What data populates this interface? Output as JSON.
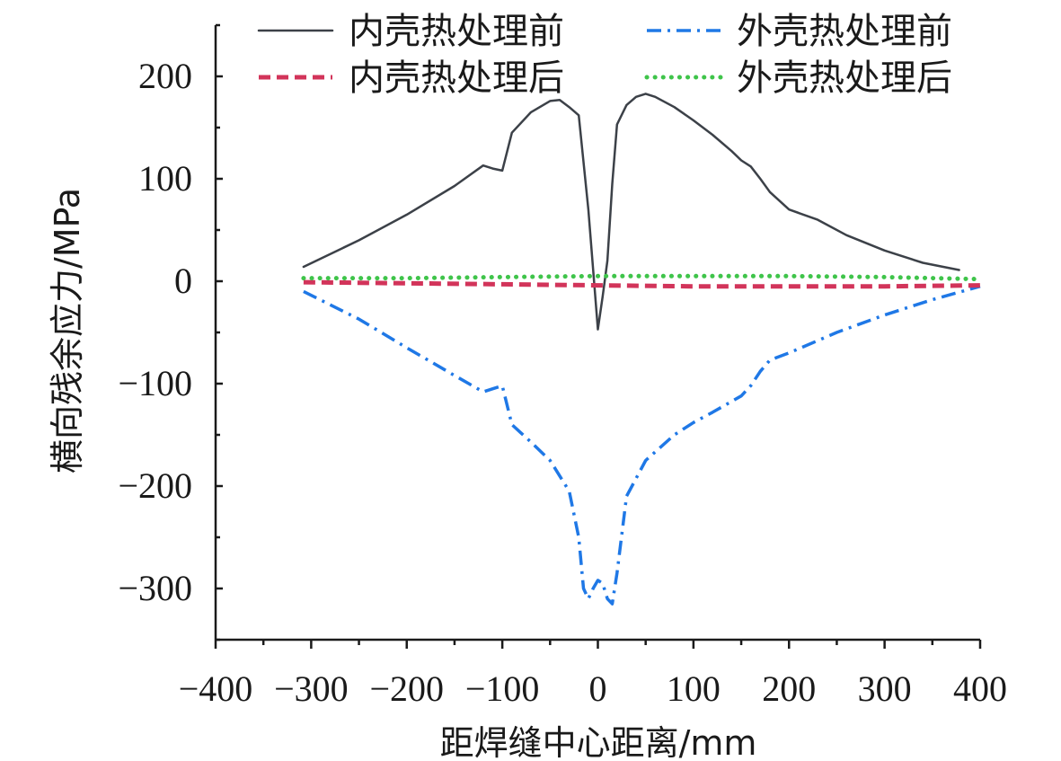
{
  "chart_data": {
    "type": "line",
    "title": "",
    "xlabel": "距焊缝中心距离/mm",
    "ylabel": "横向残余应力/MPa",
    "xlim": [
      -400,
      400
    ],
    "ylim": [
      -350,
      250
    ],
    "xticks": [
      -400,
      -300,
      -200,
      -100,
      0,
      100,
      200,
      300,
      400
    ],
    "xtick_labels": [
      "−400",
      "−300",
      "−200",
      "−100",
      "0",
      "100",
      "200",
      "300",
      "400"
    ],
    "yticks": [
      -300,
      -200,
      -100,
      0,
      100,
      200
    ],
    "ytick_labels": [
      "−300",
      "−200",
      "−100",
      "0",
      "100",
      "200"
    ],
    "grid": false,
    "legend_position": "top",
    "series": [
      {
        "name": "内壳热处理前",
        "color": "#3c4148",
        "style": "solid",
        "x": [
          -308,
          -250,
          -200,
          -150,
          -120,
          -110,
          -100,
          -90,
          -70,
          -50,
          -40,
          -30,
          -20,
          -10,
          0,
          5,
          10,
          15,
          20,
          30,
          40,
          50,
          60,
          80,
          100,
          120,
          140,
          150,
          160,
          170,
          180,
          200,
          230,
          260,
          300,
          340,
          378
        ],
        "y": [
          14,
          40,
          65,
          93,
          113,
          110,
          108,
          145,
          165,
          176,
          177,
          170,
          162,
          70,
          -47,
          -15,
          20,
          95,
          153,
          172,
          180,
          183,
          180,
          170,
          157,
          143,
          127,
          118,
          112,
          100,
          87,
          70,
          60,
          45,
          30,
          18,
          11
        ]
      },
      {
        "name": "外壳热处理前",
        "color": "#1f78e6",
        "style": "dashdot",
        "x": [
          -308,
          -250,
          -200,
          -150,
          -120,
          -110,
          -100,
          -90,
          -70,
          -50,
          -30,
          -20,
          -15,
          -10,
          -5,
          0,
          5,
          10,
          15,
          20,
          30,
          50,
          80,
          100,
          120,
          150,
          160,
          170,
          180,
          200,
          250,
          300,
          350,
          400
        ],
        "y": [
          -10,
          -37,
          -65,
          -92,
          -108,
          -105,
          -102,
          -140,
          -157,
          -175,
          -205,
          -250,
          -300,
          -310,
          -300,
          -292,
          -295,
          -310,
          -315,
          -285,
          -210,
          -175,
          -150,
          -138,
          -128,
          -112,
          -102,
          -88,
          -77,
          -70,
          -50,
          -33,
          -18,
          -5
        ]
      },
      {
        "name": "内壳热处理后",
        "color": "#d2345a",
        "style": "dashed",
        "x": [
          -308,
          -200,
          -100,
          0,
          100,
          200,
          300,
          400
        ],
        "y": [
          -1,
          -2,
          -3,
          -4,
          -5,
          -5,
          -5,
          -4
        ]
      },
      {
        "name": "外壳热处理后",
        "color": "#3fc44a",
        "style": "dotted",
        "x": [
          -308,
          -200,
          -100,
          0,
          100,
          200,
          300,
          400
        ],
        "y": [
          3,
          3,
          4,
          5,
          5,
          5,
          4,
          2
        ]
      }
    ]
  }
}
